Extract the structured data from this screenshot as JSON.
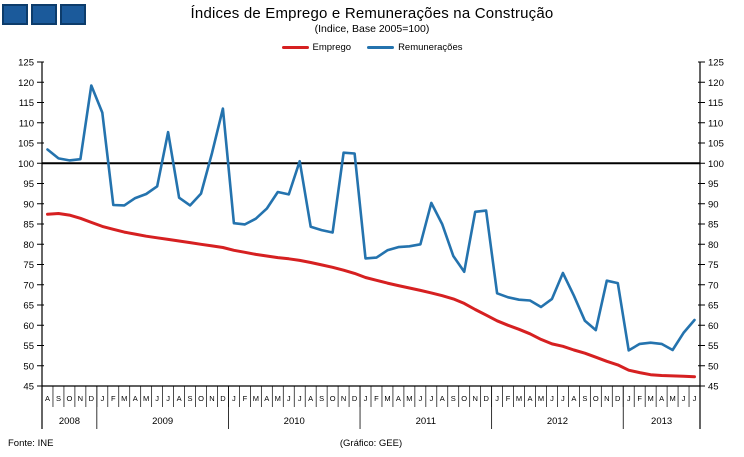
{
  "header": {
    "title": "Índices de Emprego e Remunerações na Construção",
    "subtitle": "(Indice, Base 2005=100)"
  },
  "footer": {
    "source": "Fonte: INE",
    "credit": "(Gráfico:  GEE)"
  },
  "logo": {
    "square_fill": "#1b5a9b",
    "square_border": "#0d3c6b",
    "square_count": 3
  },
  "chart_data": {
    "type": "line",
    "title": "Índices de Emprego e Remunerações na Construção",
    "subtitle": "(Indice, Base 2005=100)",
    "ylim": [
      45,
      125
    ],
    "yticks": [
      125,
      120,
      115,
      110,
      105,
      100,
      95,
      90,
      85,
      80,
      75,
      70,
      65,
      60,
      55,
      50,
      45
    ],
    "reference_line": 100,
    "grid": false,
    "legend_position": "top",
    "years": [
      {
        "label": "2008",
        "months": [
          "A",
          "S",
          "O",
          "N",
          "D"
        ]
      },
      {
        "label": "2009",
        "months": [
          "J",
          "F",
          "M",
          "A",
          "M",
          "J",
          "J",
          "A",
          "S",
          "O",
          "N",
          "D"
        ]
      },
      {
        "label": "2010",
        "months": [
          "J",
          "F",
          "M",
          "A",
          "M",
          "J",
          "J",
          "A",
          "S",
          "O",
          "N",
          "D"
        ]
      },
      {
        "label": "2011",
        "months": [
          "J",
          "F",
          "M",
          "A",
          "M",
          "J",
          "J",
          "A",
          "S",
          "O",
          "N",
          "D"
        ]
      },
      {
        "label": "2012",
        "months": [
          "J",
          "F",
          "M",
          "A",
          "M",
          "J",
          "J",
          "A",
          "S",
          "O",
          "N",
          "D"
        ]
      },
      {
        "label": "2013",
        "months": [
          "J",
          "F",
          "M",
          "A",
          "M",
          "J",
          "J"
        ]
      }
    ],
    "series": [
      {
        "name": "Emprego",
        "color": "#d62021",
        "values": [
          87.4,
          87.6,
          87.2,
          86.4,
          85.4,
          84.4,
          83.7,
          83.0,
          82.5,
          82.0,
          81.6,
          81.2,
          80.8,
          80.4,
          80.0,
          79.6,
          79.2,
          78.5,
          78.0,
          77.5,
          77.1,
          76.7,
          76.4,
          76.0,
          75.5,
          74.9,
          74.3,
          73.6,
          72.8,
          71.8,
          71.1,
          70.4,
          69.8,
          69.2,
          68.6,
          68.0,
          67.3,
          66.5,
          65.4,
          63.9,
          62.5,
          61.1,
          60.0,
          59.0,
          57.9,
          56.5,
          55.4,
          54.8,
          53.9,
          53.1,
          52.1,
          51.1,
          50.2,
          48.9,
          48.3,
          47.8,
          47.6,
          47.5,
          47.4,
          47.3
        ]
      },
      {
        "name": "Remunerações",
        "color": "#2473ae",
        "values": [
          103.4,
          101.2,
          100.7,
          101.0,
          119.2,
          112.5,
          89.7,
          89.6,
          91.4,
          92.4,
          94.3,
          107.7,
          91.5,
          89.6,
          92.5,
          102.5,
          113.5,
          85.2,
          84.9,
          86.3,
          88.8,
          92.9,
          92.3,
          100.5,
          84.3,
          83.5,
          82.9,
          102.6,
          102.4,
          76.5,
          76.7,
          78.5,
          79.3,
          79.5,
          80.0,
          90.2,
          84.9,
          77.1,
          73.2,
          88.0,
          88.3,
          67.9,
          66.9,
          66.3,
          66.1,
          64.5,
          66.5,
          72.9,
          67.3,
          61.1,
          58.8,
          71.0,
          70.4,
          53.8,
          55.4,
          55.7,
          55.4,
          53.9,
          58.1,
          61.3
        ]
      }
    ]
  }
}
